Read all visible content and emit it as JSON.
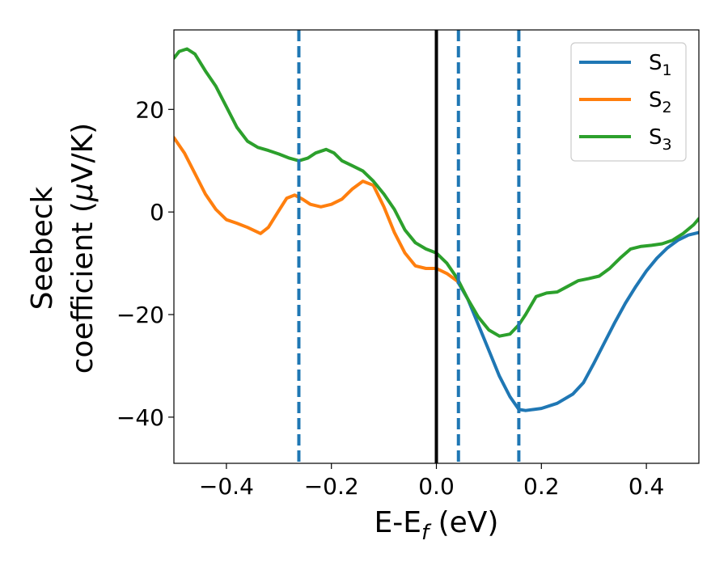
{
  "chart_data": {
    "type": "line",
    "title": "",
    "xlabel": {
      "main": "E-E",
      "sub": "f",
      "unit": " (eV)"
    },
    "ylabel": {
      "line1": "Seebeck",
      "line2_pre": "coefficient  (",
      "mu": "μ",
      "line2_post": "V/K)"
    },
    "xlim": [
      -0.5,
      0.5
    ],
    "ylim": [
      -49,
      35.5
    ],
    "xticks": [
      -0.4,
      -0.2,
      0.0,
      0.2,
      0.4
    ],
    "xtick_labels": [
      "−0.4",
      "−0.2",
      "0.0",
      "0.2",
      "0.4"
    ],
    "yticks": [
      -40,
      -20,
      0,
      20
    ],
    "ytick_labels": [
      "−40",
      "−20",
      "0",
      "20"
    ],
    "grid": false,
    "legend_position": "top-right",
    "vlines": [
      {
        "x": 0.0,
        "style": "solid",
        "color": "#000000"
      },
      {
        "x": -0.262,
        "style": "dashed",
        "color": "#1f77b4"
      },
      {
        "x": 0.042,
        "style": "dashed",
        "color": "#1f77b4"
      },
      {
        "x": 0.157,
        "style": "dashed",
        "color": "#1f77b4"
      }
    ],
    "series": [
      {
        "name": "S",
        "sub": "1",
        "color": "#1f77b4",
        "points": [
          [
            0.04,
            -13.5
          ],
          [
            0.06,
            -17
          ],
          [
            0.08,
            -22
          ],
          [
            0.1,
            -27
          ],
          [
            0.12,
            -32
          ],
          [
            0.14,
            -36
          ],
          [
            0.157,
            -38.5
          ],
          [
            0.17,
            -38.7
          ],
          [
            0.2,
            -38.3
          ],
          [
            0.23,
            -37.3
          ],
          [
            0.26,
            -35.5
          ],
          [
            0.28,
            -33.3
          ],
          [
            0.3,
            -29.5
          ],
          [
            0.32,
            -25.5
          ],
          [
            0.34,
            -21.5
          ],
          [
            0.36,
            -17.8
          ],
          [
            0.38,
            -14.5
          ],
          [
            0.4,
            -11.5
          ],
          [
            0.42,
            -9
          ],
          [
            0.44,
            -7
          ],
          [
            0.46,
            -5.5
          ],
          [
            0.48,
            -4.5
          ],
          [
            0.5,
            -4
          ]
        ]
      },
      {
        "name": "S",
        "sub": "2",
        "color": "#ff7f0e",
        "points": [
          [
            -0.5,
            14.5
          ],
          [
            -0.48,
            11.5
          ],
          [
            -0.46,
            7.5
          ],
          [
            -0.44,
            3.5
          ],
          [
            -0.42,
            0.5
          ],
          [
            -0.4,
            -1.5
          ],
          [
            -0.38,
            -2.2
          ],
          [
            -0.36,
            -3
          ],
          [
            -0.335,
            -4.2
          ],
          [
            -0.32,
            -3
          ],
          [
            -0.3,
            0.3
          ],
          [
            -0.285,
            2.7
          ],
          [
            -0.27,
            3.3
          ],
          [
            -0.255,
            2.5
          ],
          [
            -0.24,
            1.5
          ],
          [
            -0.22,
            1
          ],
          [
            -0.2,
            1.5
          ],
          [
            -0.18,
            2.5
          ],
          [
            -0.16,
            4.5
          ],
          [
            -0.14,
            6
          ],
          [
            -0.12,
            5.2
          ],
          [
            -0.1,
            1
          ],
          [
            -0.08,
            -4
          ],
          [
            -0.06,
            -8
          ],
          [
            -0.04,
            -10.5
          ],
          [
            -0.02,
            -11
          ],
          [
            0.0,
            -11
          ],
          [
            0.02,
            -12
          ],
          [
            0.04,
            -13.5
          ]
        ]
      },
      {
        "name": "S",
        "sub": "3",
        "color": "#2ca02c",
        "points": [
          [
            -0.5,
            30
          ],
          [
            -0.49,
            31.3
          ],
          [
            -0.475,
            31.8
          ],
          [
            -0.46,
            30.8
          ],
          [
            -0.44,
            27.5
          ],
          [
            -0.42,
            24.5
          ],
          [
            -0.4,
            20.5
          ],
          [
            -0.38,
            16.5
          ],
          [
            -0.36,
            13.8
          ],
          [
            -0.34,
            12.6
          ],
          [
            -0.32,
            12
          ],
          [
            -0.3,
            11.3
          ],
          [
            -0.28,
            10.5
          ],
          [
            -0.262,
            10
          ],
          [
            -0.245,
            10.5
          ],
          [
            -0.23,
            11.5
          ],
          [
            -0.21,
            12.2
          ],
          [
            -0.195,
            11.5
          ],
          [
            -0.18,
            10
          ],
          [
            -0.16,
            9
          ],
          [
            -0.14,
            8
          ],
          [
            -0.12,
            6
          ],
          [
            -0.1,
            3.5
          ],
          [
            -0.08,
            0.5
          ],
          [
            -0.06,
            -3.5
          ],
          [
            -0.04,
            -6
          ],
          [
            -0.02,
            -7.2
          ],
          [
            0.0,
            -8
          ],
          [
            0.02,
            -10
          ],
          [
            0.04,
            -13
          ],
          [
            0.06,
            -17
          ],
          [
            0.08,
            -20.5
          ],
          [
            0.1,
            -23
          ],
          [
            0.12,
            -24.2
          ],
          [
            0.14,
            -23.8
          ],
          [
            0.157,
            -22
          ],
          [
            0.17,
            -20
          ],
          [
            0.19,
            -16.5
          ],
          [
            0.21,
            -15.8
          ],
          [
            0.23,
            -15.6
          ],
          [
            0.25,
            -14.5
          ],
          [
            0.27,
            -13.4
          ],
          [
            0.29,
            -13
          ],
          [
            0.31,
            -12.5
          ],
          [
            0.33,
            -11
          ],
          [
            0.35,
            -9
          ],
          [
            0.37,
            -7.2
          ],
          [
            0.39,
            -6.7
          ],
          [
            0.41,
            -6.5
          ],
          [
            0.43,
            -6.2
          ],
          [
            0.45,
            -5.5
          ],
          [
            0.47,
            -4.2
          ],
          [
            0.49,
            -2.5
          ],
          [
            0.5,
            -1.3
          ]
        ]
      }
    ]
  }
}
